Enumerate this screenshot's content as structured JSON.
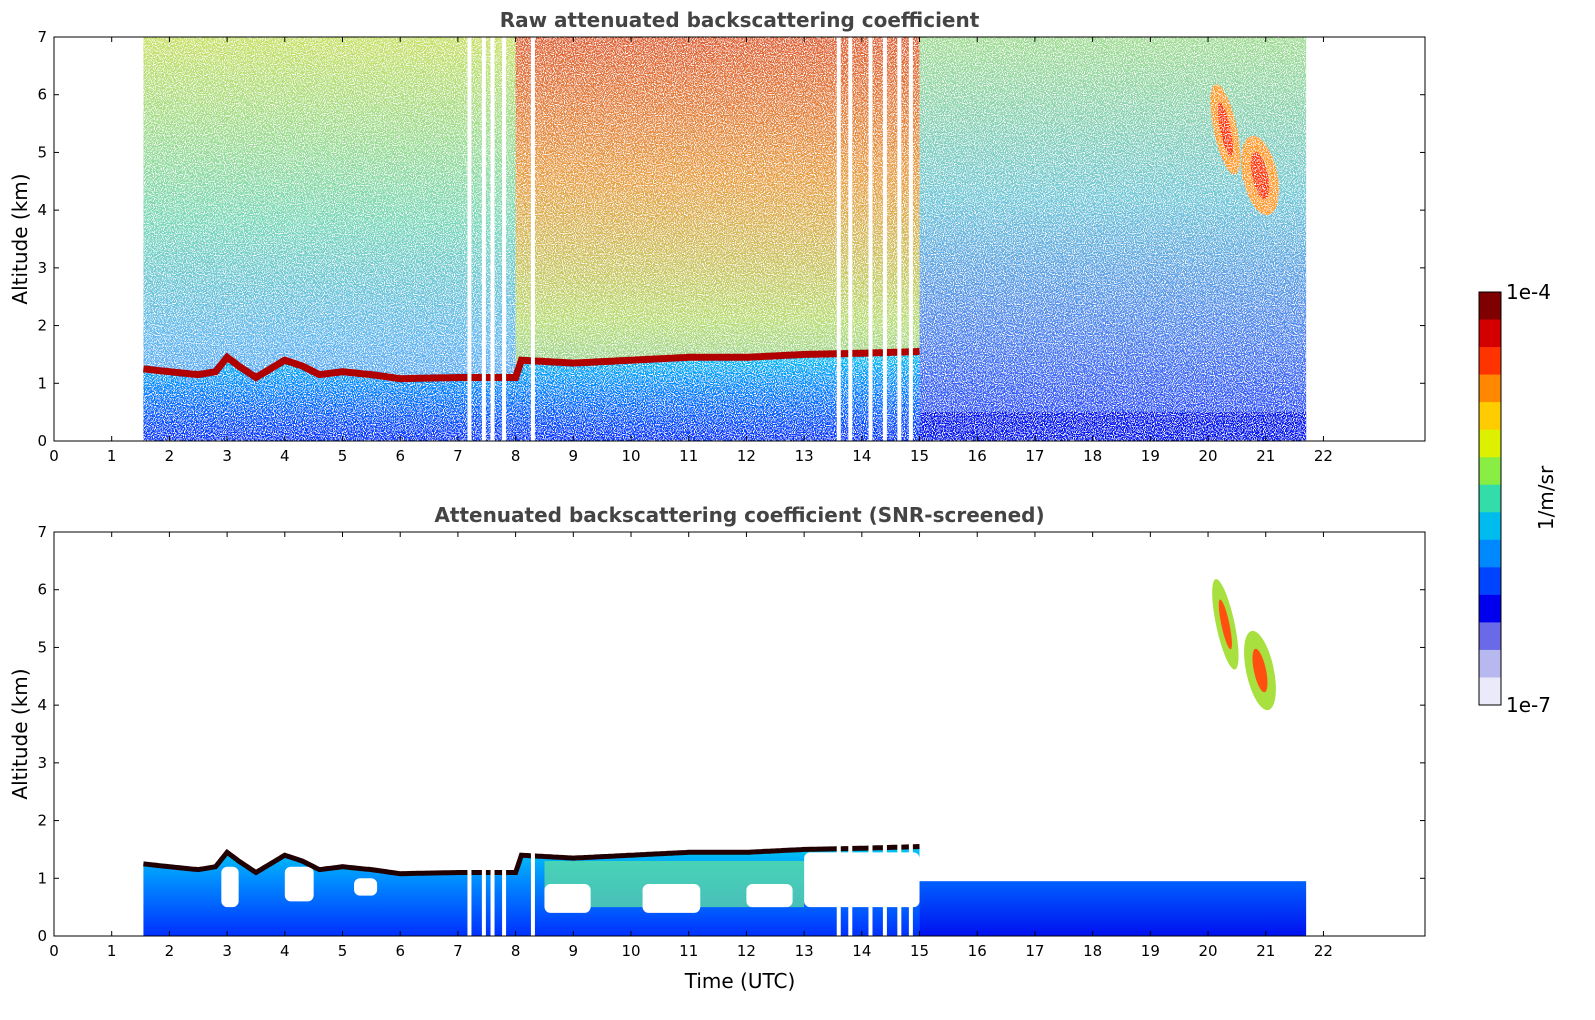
{
  "chart_data": [
    {
      "type": "heatmap",
      "title": "Raw attenuated backscattering coefficient",
      "xlabel": "",
      "ylabel": "Altitude (km)",
      "xlim": [
        0,
        24
      ],
      "ylim": [
        0,
        7
      ],
      "xticks": [
        "0",
        "1",
        "2",
        "3",
        "4",
        "5",
        "6",
        "7",
        "8",
        "9",
        "10",
        "11",
        "12",
        "13",
        "14",
        "15",
        "16",
        "17",
        "18",
        "19",
        "20",
        "21",
        "22"
      ],
      "yticks": [
        "0",
        "1",
        "2",
        "3",
        "4",
        "5",
        "6",
        "7"
      ],
      "data_time_range": [
        1.55,
        21.7
      ],
      "features": {
        "boundary_layer_top_km": {
          "x": [
            1.55,
            2.0,
            2.5,
            2.8,
            3.0,
            3.2,
            3.5,
            4.0,
            4.3,
            4.6,
            5.0,
            5.5,
            6.0,
            7.0,
            8.0,
            8.1,
            9.0,
            10.0,
            11.0,
            12.0,
            13.0,
            14.0,
            15.0
          ],
          "y": [
            1.25,
            1.2,
            1.15,
            1.2,
            1.45,
            1.3,
            1.1,
            1.4,
            1.3,
            1.15,
            1.2,
            1.15,
            1.08,
            1.1,
            1.1,
            1.4,
            1.35,
            1.4,
            1.45,
            1.45,
            1.5,
            1.52,
            1.55
          ]
        },
        "upper_cloud": [
          {
            "time": [
              20.1,
              20.5
            ],
            "alt_km": [
              4.6,
              6.2
            ]
          },
          {
            "time": [
              20.6,
              21.2
            ],
            "alt_km": [
              3.9,
              5.3
            ]
          }
        ],
        "data_gaps_utc": [
          7.2,
          7.45,
          7.6,
          7.8,
          8.3,
          13.6,
          13.8,
          14.15,
          14.4,
          14.65,
          14.85
        ]
      }
    },
    {
      "type": "heatmap",
      "title": "Attenuated backscattering coefficient (SNR-screened)",
      "xlabel": "Time (UTC)",
      "ylabel": "Altitude (km)",
      "xlim": [
        0,
        24
      ],
      "ylim": [
        0,
        7
      ],
      "xticks": [
        "0",
        "1",
        "2",
        "3",
        "4",
        "5",
        "6",
        "7",
        "8",
        "9",
        "10",
        "11",
        "12",
        "13",
        "14",
        "15",
        "16",
        "17",
        "18",
        "19",
        "20",
        "21",
        "22"
      ],
      "yticks": [
        "0",
        "1",
        "2",
        "3",
        "4",
        "5",
        "6",
        "7"
      ],
      "data_time_range": [
        1.55,
        21.7
      ]
    }
  ],
  "colorbar": {
    "label": "1/m/sr",
    "max_label": "1e-4",
    "min_label": "1e-7",
    "colors": [
      "#7f0000",
      "#d40000",
      "#ff3300",
      "#ff8800",
      "#ffcc00",
      "#ddf000",
      "#88ee44",
      "#33ddaa",
      "#00bbee",
      "#0088ff",
      "#0044ff",
      "#0000ee",
      "#6a6ae8",
      "#b8b8f0",
      "#eaeafa"
    ]
  }
}
